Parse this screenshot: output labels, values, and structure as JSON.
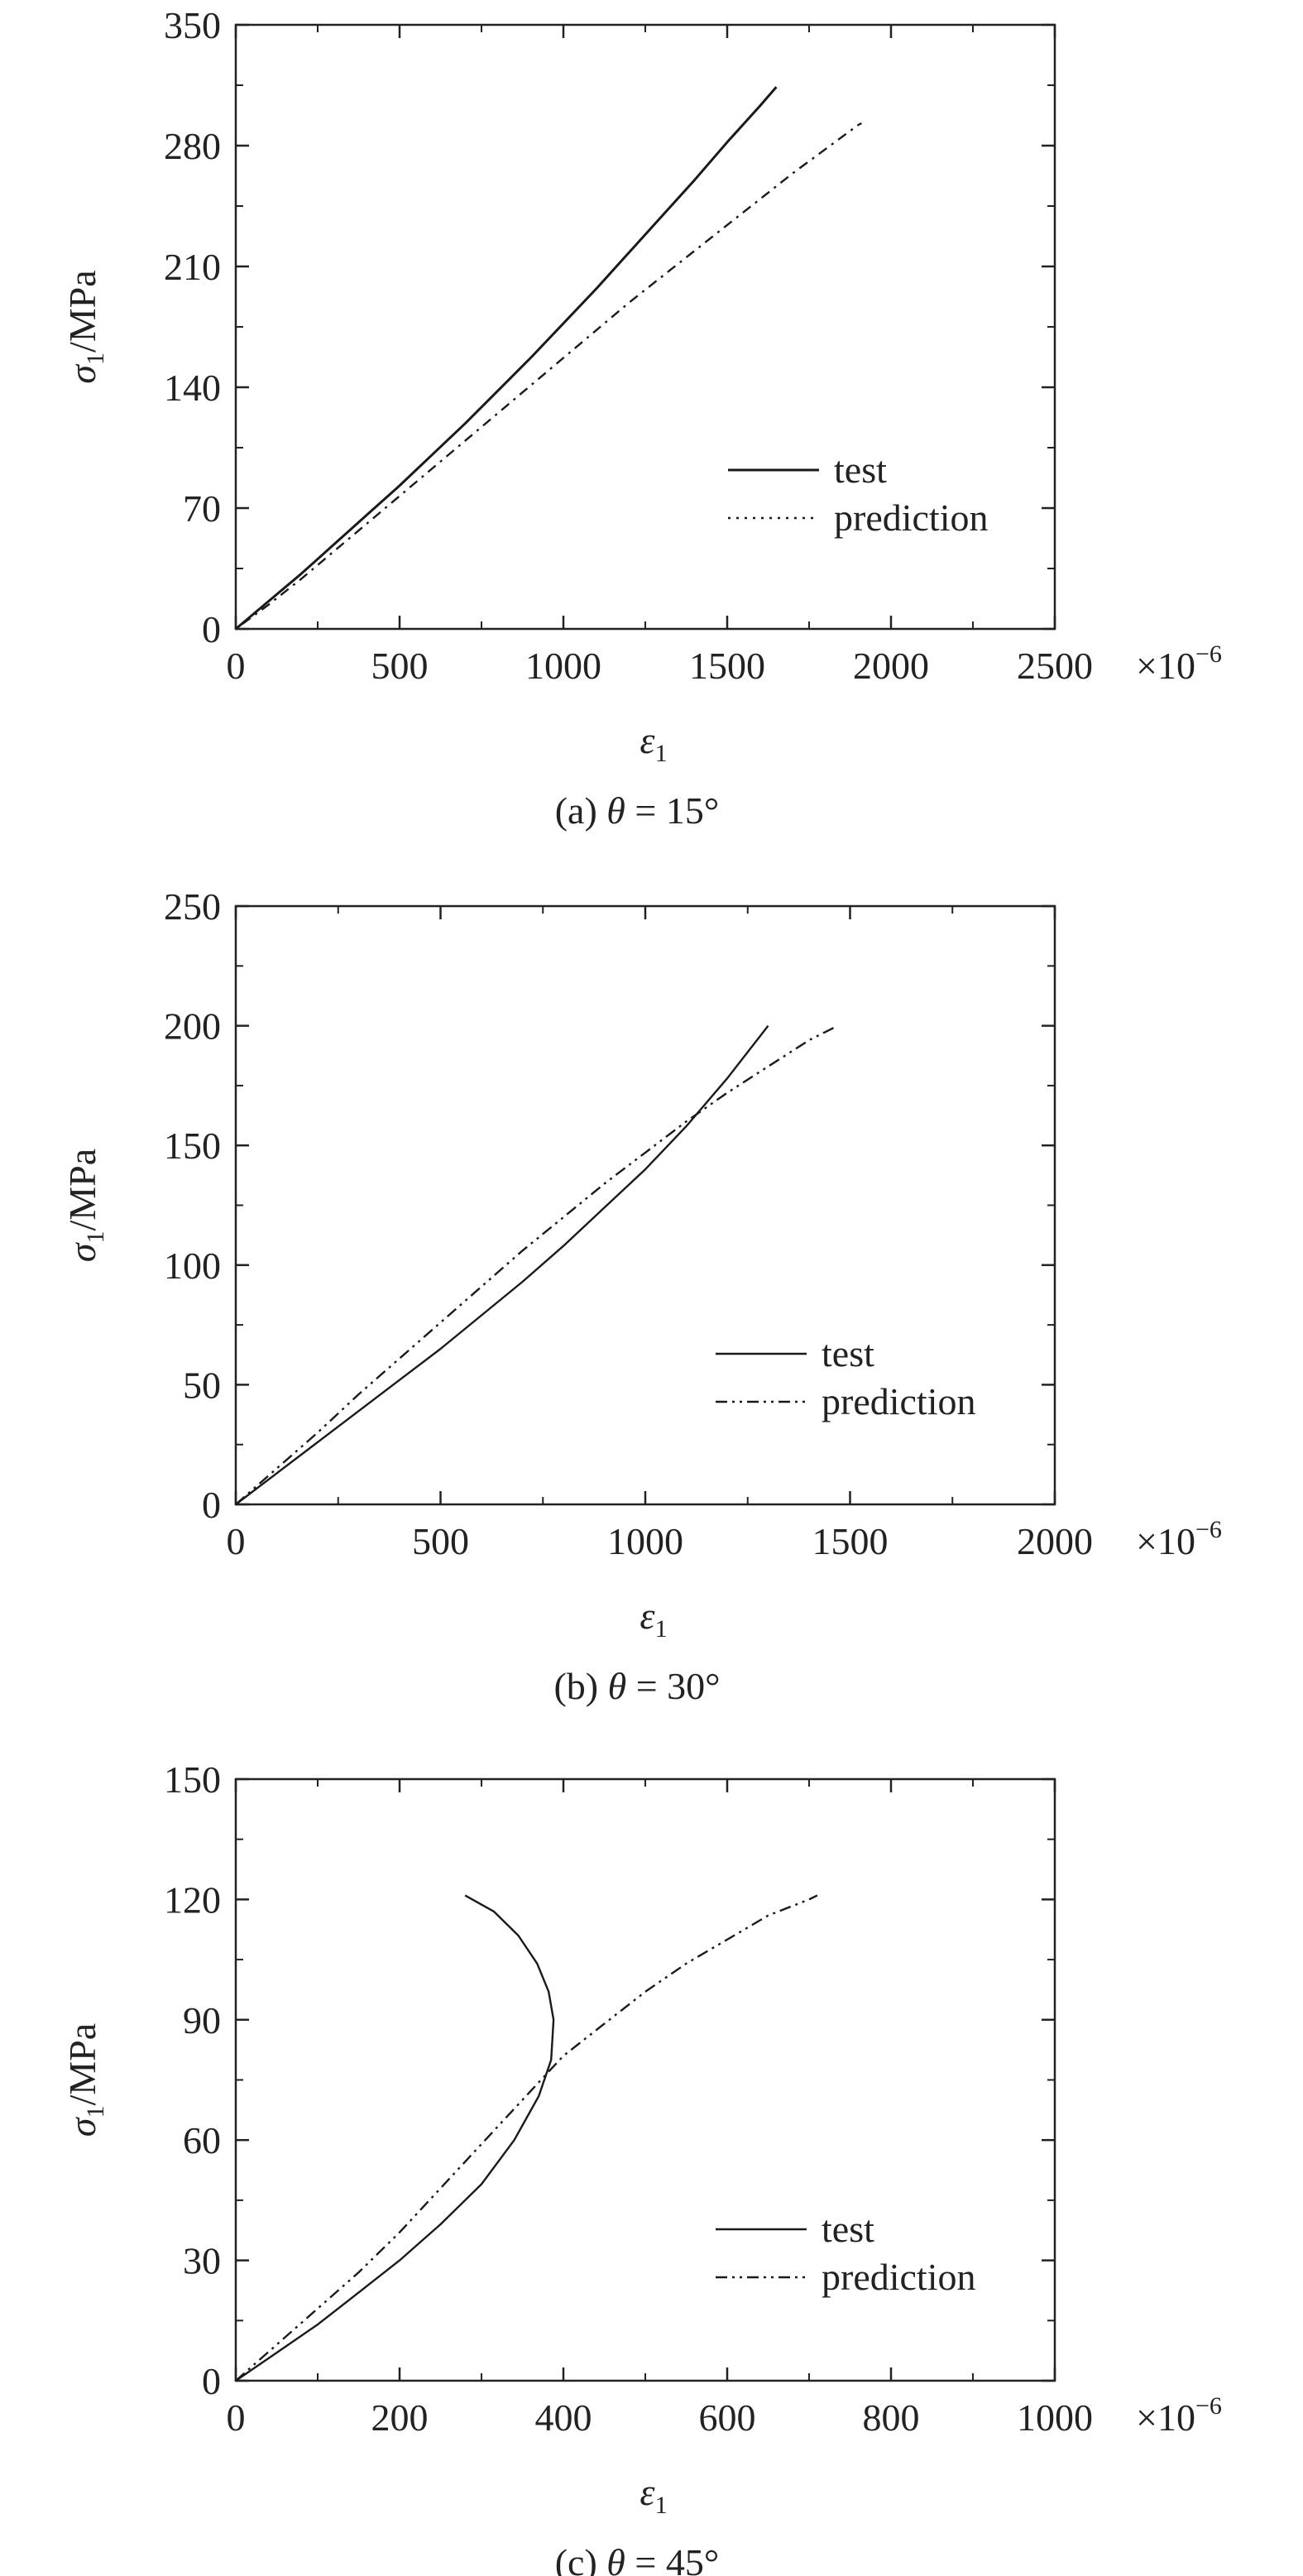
{
  "chart_data": [
    {
      "type": "line",
      "caption_prefix": "(a)",
      "caption_symbol": "θ",
      "caption_value": " = 15°",
      "xlim": [
        0,
        2500
      ],
      "ylim": [
        0,
        350
      ],
      "xticks": [
        0,
        500,
        1000,
        1500,
        2000,
        2500
      ],
      "yticks": [
        0,
        70,
        140,
        210,
        280,
        350
      ],
      "xlabel_symbol": "ε",
      "xlabel_sub": "1",
      "ylabel_symbol": "σ",
      "ylabel_sub": "1",
      "ylabel_unit": "/MPa",
      "x_multiplier": "×10",
      "x_multiplier_exp": "−6",
      "legend": [
        "test",
        "prediction"
      ],
      "series": [
        {
          "name": "test",
          "style": "solid",
          "points": [
            [
              0,
              0
            ],
            [
              100,
              16
            ],
            [
              200,
              32
            ],
            [
              300,
              49
            ],
            [
              400,
              66
            ],
            [
              500,
              83
            ],
            [
              600,
              101
            ],
            [
              700,
              119
            ],
            [
              800,
              138
            ],
            [
              900,
              157
            ],
            [
              1000,
              177
            ],
            [
              1100,
              197
            ],
            [
              1200,
              218
            ],
            [
              1300,
              239
            ],
            [
              1400,
              260
            ],
            [
              1500,
              282
            ],
            [
              1600,
              303
            ],
            [
              1650,
              314
            ]
          ]
        },
        {
          "name": "prediction",
          "style": "dashdot",
          "points": [
            [
              0,
              0
            ],
            [
              100,
              14
            ],
            [
              200,
              29
            ],
            [
              300,
              45
            ],
            [
              400,
              61
            ],
            [
              500,
              77
            ],
            [
              600,
              93
            ],
            [
              700,
              109
            ],
            [
              800,
              125
            ],
            [
              900,
              141
            ],
            [
              1000,
              157
            ],
            [
              1100,
              173
            ],
            [
              1200,
              189
            ],
            [
              1300,
              204
            ],
            [
              1400,
              219
            ],
            [
              1500,
              234
            ],
            [
              1600,
              249
            ],
            [
              1700,
              264
            ],
            [
              1800,
              278
            ],
            [
              1900,
              292
            ],
            [
              1910,
              293
            ]
          ]
        }
      ]
    },
    {
      "type": "line",
      "caption_prefix": "(b)",
      "caption_symbol": "θ",
      "caption_value": " = 30°",
      "xlim": [
        0,
        2000
      ],
      "ylim": [
        0,
        250
      ],
      "xticks": [
        0,
        500,
        1000,
        1500,
        2000
      ],
      "yticks": [
        0,
        50,
        100,
        150,
        200,
        250
      ],
      "xlabel_symbol": "ε",
      "xlabel_sub": "1",
      "ylabel_symbol": "σ",
      "ylabel_sub": "1",
      "ylabel_unit": "/MPa",
      "x_multiplier": "×10",
      "x_multiplier_exp": "−6",
      "legend": [
        "test",
        "prediction"
      ],
      "series": [
        {
          "name": "test",
          "style": "solid",
          "points": [
            [
              0,
              0
            ],
            [
              100,
              13
            ],
            [
              200,
              26
            ],
            [
              300,
              39
            ],
            [
              400,
              52
            ],
            [
              500,
              65
            ],
            [
              600,
              79
            ],
            [
              700,
              93
            ],
            [
              800,
              108
            ],
            [
              900,
              124
            ],
            [
              1000,
              140
            ],
            [
              1100,
              158
            ],
            [
              1200,
              178
            ],
            [
              1300,
              200
            ]
          ]
        },
        {
          "name": "prediction",
          "style": "dashdot",
          "points": [
            [
              0,
              0
            ],
            [
              100,
              15
            ],
            [
              200,
              30
            ],
            [
              300,
              46
            ],
            [
              400,
              61
            ],
            [
              500,
              76
            ],
            [
              600,
              91
            ],
            [
              700,
              106
            ],
            [
              800,
              120
            ],
            [
              900,
              134
            ],
            [
              1000,
              147
            ],
            [
              1100,
              160
            ],
            [
              1200,
              172
            ],
            [
              1300,
              183
            ],
            [
              1400,
              194
            ],
            [
              1470,
              200
            ]
          ]
        }
      ]
    },
    {
      "type": "line",
      "caption_prefix": "(c)",
      "caption_symbol": "θ",
      "caption_value": " = 45°",
      "xlim": [
        0,
        1000
      ],
      "ylim": [
        0,
        150
      ],
      "xticks": [
        0,
        200,
        400,
        600,
        800,
        1000
      ],
      "yticks": [
        0,
        30,
        60,
        90,
        120,
        150
      ],
      "xlabel_symbol": "ε",
      "xlabel_sub": "1",
      "ylabel_symbol": "σ",
      "ylabel_sub": "1",
      "ylabel_unit": "/MPa",
      "x_multiplier": "×10",
      "x_multiplier_exp": "−6",
      "legend": [
        "test",
        "prediction"
      ],
      "series": [
        {
          "name": "test",
          "style": "solid",
          "points": [
            [
              0,
              0
            ],
            [
              50,
              7
            ],
            [
              100,
              14
            ],
            [
              150,
              22
            ],
            [
              200,
              30
            ],
            [
              250,
              39
            ],
            [
              300,
              49
            ],
            [
              340,
              60
            ],
            [
              370,
              71
            ],
            [
              385,
              80
            ],
            [
              388,
              90
            ],
            [
              382,
              97
            ],
            [
              368,
              104
            ],
            [
              345,
              111
            ],
            [
              315,
              117
            ],
            [
              280,
              121
            ]
          ]
        },
        {
          "name": "prediction",
          "style": "dashdot",
          "points": [
            [
              0,
              0
            ],
            [
              50,
              9
            ],
            [
              100,
              18
            ],
            [
              150,
              27
            ],
            [
              200,
              37
            ],
            [
              250,
              48
            ],
            [
              300,
              59
            ],
            [
              350,
              70
            ],
            [
              400,
              81
            ],
            [
              450,
              89
            ],
            [
              500,
              97
            ],
            [
              550,
              104
            ],
            [
              600,
              110
            ],
            [
              650,
              116
            ],
            [
              700,
              120
            ],
            [
              710,
              121
            ]
          ]
        }
      ]
    }
  ]
}
